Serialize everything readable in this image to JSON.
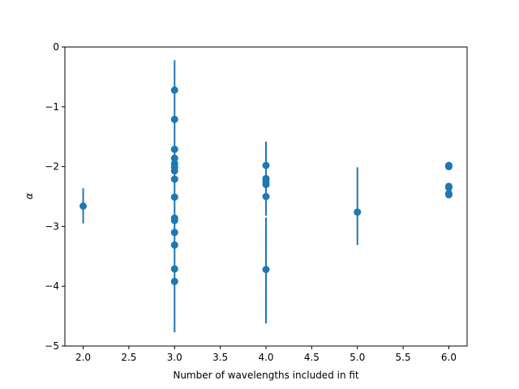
{
  "chart_data": {
    "type": "scatter",
    "title": "",
    "xlabel": "Number of wavelengths included in fit",
    "ylabel": "α",
    "xlim": [
      1.8,
      6.2
    ],
    "ylim": [
      -5,
      0
    ],
    "xticks": [
      2.0,
      2.5,
      3.0,
      3.5,
      4.0,
      4.5,
      5.0,
      5.5,
      6.0
    ],
    "xtick_labels": [
      "2.0",
      "2.5",
      "3.0",
      "3.5",
      "4.0",
      "4.5",
      "5.0",
      "5.5",
      "6.0"
    ],
    "yticks": [
      0,
      -1,
      -2,
      -3,
      -4,
      -5
    ],
    "ytick_labels": [
      "0",
      "−1",
      "−2",
      "−3",
      "−4",
      "−5"
    ],
    "grid": false,
    "color": "#1f77b4",
    "series": [
      {
        "points": [
          {
            "x": 2.0,
            "y": -2.66
          },
          {
            "x": 3.0,
            "y": -0.72
          },
          {
            "x": 3.0,
            "y": -1.21
          },
          {
            "x": 3.0,
            "y": -1.71
          },
          {
            "x": 3.0,
            "y": -1.86
          },
          {
            "x": 3.0,
            "y": -1.95
          },
          {
            "x": 3.0,
            "y": -2.01
          },
          {
            "x": 3.0,
            "y": -2.07
          },
          {
            "x": 3.0,
            "y": -2.21
          },
          {
            "x": 3.0,
            "y": -2.51
          },
          {
            "x": 3.0,
            "y": -2.86
          },
          {
            "x": 3.0,
            "y": -2.9
          },
          {
            "x": 3.0,
            "y": -3.1
          },
          {
            "x": 3.0,
            "y": -3.31
          },
          {
            "x": 3.0,
            "y": -3.71
          },
          {
            "x": 3.0,
            "y": -3.92
          },
          {
            "x": 4.0,
            "y": -1.98
          },
          {
            "x": 4.0,
            "y": -2.2
          },
          {
            "x": 4.0,
            "y": -2.25
          },
          {
            "x": 4.0,
            "y": -2.3
          },
          {
            "x": 4.0,
            "y": -2.5
          },
          {
            "x": 4.0,
            "y": -3.72
          },
          {
            "x": 5.0,
            "y": -2.76
          },
          {
            "x": 6.0,
            "y": -1.98
          },
          {
            "x": 6.0,
            "y": -2.0
          },
          {
            "x": 6.0,
            "y": -2.33
          },
          {
            "x": 6.0,
            "y": -2.35
          },
          {
            "x": 6.0,
            "y": -2.45
          },
          {
            "x": 6.0,
            "y": -2.47
          }
        ],
        "error_bars": [
          {
            "x": 2.0,
            "y_low": -2.95,
            "y_high": -2.36
          },
          {
            "x": 3.0,
            "y_low": -4.77,
            "y_high": -0.22
          },
          {
            "x": 4.0,
            "y_low": -4.62,
            "y_high": -2.85
          },
          {
            "x": 4.0,
            "y_low": -2.82,
            "y_high": -1.58
          },
          {
            "x": 5.0,
            "y_low": -3.31,
            "y_high": -2.01
          }
        ]
      }
    ]
  }
}
